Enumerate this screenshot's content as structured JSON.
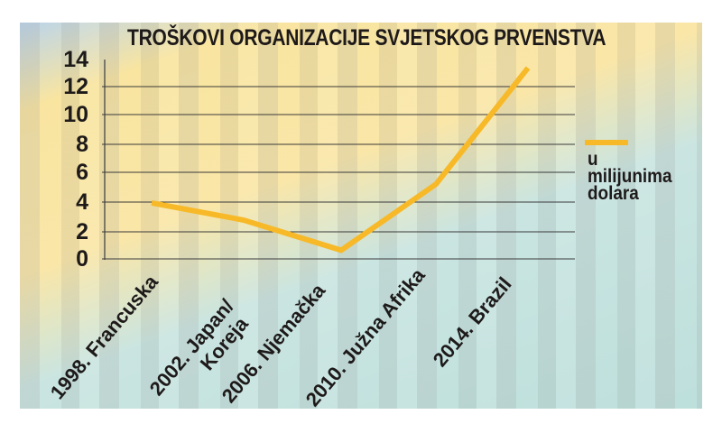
{
  "chart_data": {
    "type": "line",
    "title": "TROŠKOVI ORGANIZACIJE SVJETSKOG PRVENSTVA",
    "xlabel": "",
    "ylabel": "",
    "categories": [
      "1998. Francuska",
      "2002. Japan/ Koreja",
      "2006. Njemačka",
      "2010. Južna Afrika",
      "2014. Brazil"
    ],
    "series": [
      {
        "name": "u milijunima dolara",
        "values": [
          3.9,
          2.7,
          0.6,
          5.2,
          13.3
        ],
        "color": "#f7b928"
      }
    ],
    "ylim": [
      0,
      14
    ],
    "yticks": [
      0,
      2,
      4,
      6,
      8,
      10,
      12,
      14
    ],
    "grid": true,
    "legend_position": "right"
  },
  "header": {
    "title": "TROŠKOVI ORGANIZACIJE SVJETSKOG PRVENSTVA"
  },
  "yaxis": {
    "ticks": [
      "14",
      "12",
      "10",
      "8",
      "6",
      "4",
      "2",
      "0"
    ]
  },
  "xaxis": {
    "labels": [
      "1998. Francuska",
      "2002. Japan/",
      "Koreja",
      "2006. Njemačka",
      "2010. Južna Afrika",
      "2014. Brazil"
    ]
  },
  "legend": {
    "line1": "u",
    "line2": "milijunima",
    "line3": "dolara",
    "color": "#f7b928"
  }
}
